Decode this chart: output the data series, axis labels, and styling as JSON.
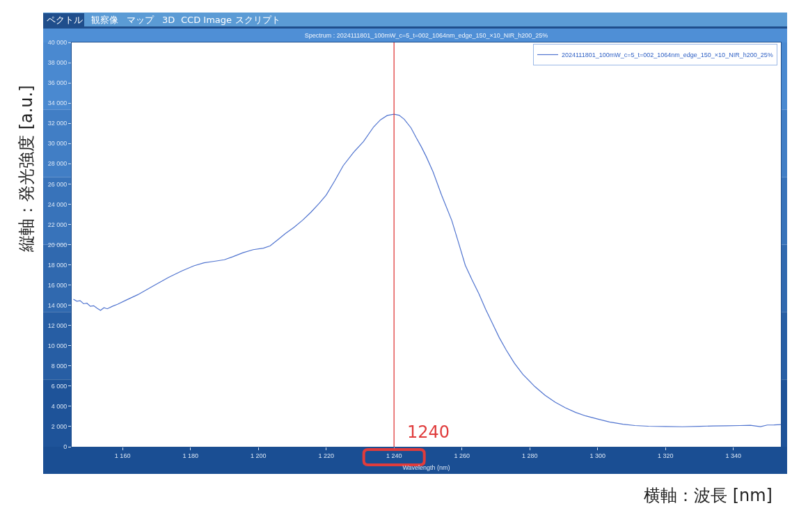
{
  "chart_data": {
    "type": "line",
    "title": "Spectrum : 2024111801_100mW_c=5_t=002_1064nm_edge_150_×10_NIR_h200_25%",
    "xlabel": "Wavelength (nm)",
    "ylabel": "縦軸：発光強度 [a.u.]",
    "annotations": [
      "ペクトル",
      "観察像",
      "マップ",
      "3D",
      "CCD Image",
      "スクリプト",
      "横軸：波長 [nm]"
    ],
    "xlim": [
      1145,
      1354
    ],
    "ylim": [
      0,
      40000
    ],
    "xticks": [
      {
        "value": 1160,
        "label": "1 160"
      },
      {
        "value": 1180,
        "label": "1 180"
      },
      {
        "value": 1200,
        "label": "1 200"
      },
      {
        "value": 1220,
        "label": "1 220"
      },
      {
        "value": 1240,
        "label": "1 240"
      },
      {
        "value": 1260,
        "label": "1 260"
      },
      {
        "value": 1280,
        "label": "1 280"
      },
      {
        "value": 1300,
        "label": "1 300"
      },
      {
        "value": 1320,
        "label": "1 320"
      },
      {
        "value": 1340,
        "label": "1 340"
      }
    ],
    "yticks": [
      0,
      {
        "value": 2000,
        "label": "2 000"
      },
      {
        "value": 4000,
        "label": "4 000"
      },
      {
        "value": 6000,
        "label": "6 000"
      },
      {
        "value": 8000,
        "label": "8 000"
      },
      {
        "value": 10000,
        "label": "10 000"
      },
      {
        "value": 12000,
        "label": "12 000"
      },
      {
        "value": 14000,
        "label": "14 000"
      },
      {
        "value": 16000,
        "label": "16 000"
      },
      {
        "value": 18000,
        "label": "18 000"
      },
      {
        "value": 20000,
        "label": "20 000"
      },
      {
        "value": 22000,
        "label": "22 000"
      },
      {
        "value": 24000,
        "label": "24 000"
      },
      {
        "value": 26000,
        "label": "26 000"
      },
      {
        "value": 28000,
        "label": "28 000"
      },
      {
        "value": 30000,
        "label": "30 000"
      },
      {
        "value": 32000,
        "label": "32 000"
      },
      {
        "value": 34000,
        "label": "34 000"
      },
      {
        "value": 36000,
        "label": "36 000"
      },
      {
        "value": 38000,
        "label": "38 000"
      },
      {
        "value": 40000,
        "label": "40 000"
      }
    ],
    "grid": false,
    "legend": "top right",
    "series": [
      {
        "name": "2024111801_100mW_c=5_t=002_1064nm_edge_150_×10_NIR_h200_25%",
        "color": "#4f73cf",
        "x": [
          1145.5,
          1146.5,
          1147.5,
          1148.5,
          1149.5,
          1150.5,
          1151.5,
          1152.5,
          1153.5,
          1154.5,
          1155.5,
          1157,
          1158.5,
          1161,
          1164.5,
          1169,
          1173.5,
          1177.5,
          1181,
          1184,
          1187,
          1190,
          1192.5,
          1195.5,
          1198.5,
          1201.5,
          1203.5,
          1206,
          1208,
          1210.5,
          1213,
          1215.5,
          1218,
          1220,
          1222.5,
          1225,
          1228,
          1231,
          1234,
          1236,
          1238,
          1240,
          1241.5,
          1243,
          1245,
          1246.5,
          1248,
          1249.5,
          1251.5,
          1254,
          1257,
          1259,
          1261,
          1263,
          1265,
          1267,
          1269,
          1271,
          1273,
          1275.5,
          1278,
          1281.5,
          1284.5,
          1287.5,
          1290.5,
          1293.5,
          1296.5,
          1300,
          1303.5,
          1307.5,
          1311,
          1315,
          1320,
          1325,
          1330,
          1334,
          1338,
          1342,
          1345,
          1348,
          1350,
          1352,
          1354
        ],
        "values": [
          14600,
          14400,
          14450,
          14150,
          14200,
          13900,
          13950,
          13700,
          13500,
          13750,
          13650,
          13900,
          14100,
          14500,
          15050,
          15900,
          16750,
          17400,
          17900,
          18200,
          18350,
          18500,
          18800,
          19200,
          19500,
          19650,
          19880,
          20550,
          21100,
          21700,
          22400,
          23200,
          24100,
          24900,
          26300,
          27800,
          29100,
          30200,
          31650,
          32350,
          32780,
          32900,
          32800,
          32400,
          31550,
          30600,
          29700,
          28700,
          27200,
          24900,
          22400,
          20200,
          17950,
          16500,
          15150,
          13600,
          12200,
          10800,
          9600,
          8250,
          7150,
          5950,
          5100,
          4400,
          3850,
          3400,
          3050,
          2750,
          2450,
          2230,
          2100,
          2030,
          2000,
          1980,
          2020,
          2060,
          2080,
          2100,
          2120,
          1990,
          2150,
          2160,
          2200
        ]
      }
    ],
    "ref_lines": [
      {
        "axis": "x",
        "value": 1240,
        "label": "1240",
        "color": "#e03c3c"
      }
    ]
  }
}
